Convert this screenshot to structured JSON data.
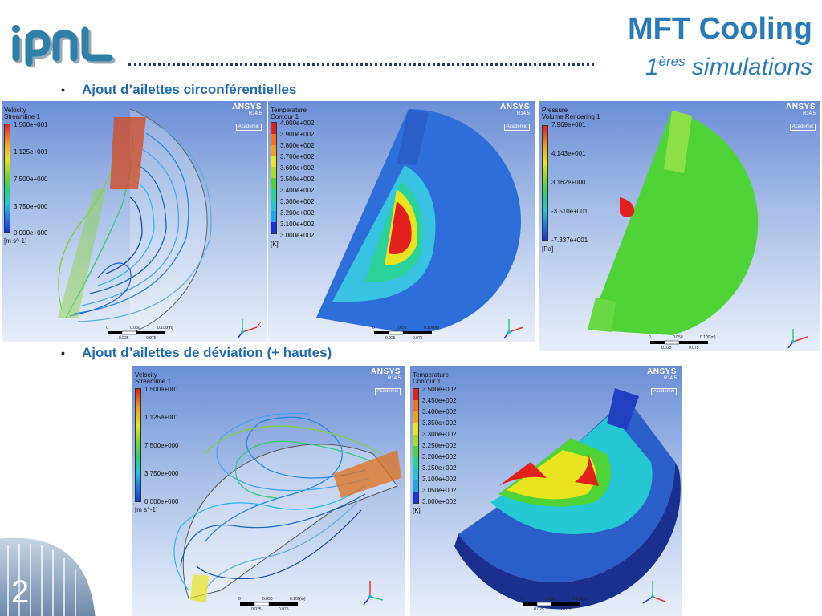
{
  "header": {
    "title": "MFT Cooling",
    "subtitle_number": "1",
    "subtitle_sup": "ères",
    "subtitle_rest": " simulations"
  },
  "bullets": {
    "b1": "Ajout d’ailettes circonférentielles",
    "b2": "Ajout d’ailettes de déviation (+ hautes)"
  },
  "ansys": {
    "name": "ANSYS",
    "version": "R14.5",
    "edition": "Academic"
  },
  "axes_glyph": {
    "x": "X",
    "y": "Y",
    "z": "Z"
  },
  "scale": {
    "t0": "0",
    "t1": "0.050",
    "t2": "0.100",
    "unit": "(m)",
    "t3": "0.025",
    "t4": "0.075"
  },
  "panels": {
    "p1": {
      "legend_title": "Velocity",
      "legend_sub": "Streamline 1",
      "ticks": [
        "1.500e+001",
        "1.125e+001",
        "7.500e+000",
        "3.750e+000",
        "0.000e+000"
      ],
      "unit": "[m s^-1]"
    },
    "p2": {
      "legend_title": "Temperature",
      "legend_sub": "Contour 1",
      "ticks": [
        "4.000e+002",
        "3.900e+002",
        "3.800e+002",
        "3.700e+002",
        "3.600e+002",
        "3.500e+002",
        "3.400e+002",
        "3.300e+002",
        "3.200e+002",
        "3.100e+002",
        "3.000e+002"
      ],
      "unit": "[K]"
    },
    "p3": {
      "legend_title": "Pressure",
      "legend_sub": "Volume Rendering 1",
      "ticks": [
        "7.969e+001",
        "4.143e+001",
        "3.162e+000",
        "-3.510e+001",
        "-7.337e+001"
      ],
      "unit": "[Pa]"
    },
    "p4": {
      "legend_title": "Velocity",
      "legend_sub": "Streamline 1",
      "ticks": [
        "1.500e+001",
        "1.125e+001",
        "7.500e+000",
        "3.750e+000",
        "0.000e+000"
      ],
      "unit": "[m s^-1]"
    },
    "p5": {
      "legend_title": "Temperature",
      "legend_sub": "Contour 1",
      "ticks": [
        "3.500e+002",
        "3.450e+002",
        "3.400e+002",
        "3.350e+002",
        "3.300e+002",
        "3.250e+002",
        "3.200e+002",
        "3.150e+002",
        "3.100e+002",
        "3.050e+002",
        "3.000e+002"
      ],
      "unit": "[K]"
    }
  },
  "footer": {
    "page_number": "2"
  },
  "colors": {
    "title_blue": "#2a7ab8",
    "bullet_blue": "#1f6ab0",
    "logo_teal": "#2f7fa6",
    "contour_steps": [
      "#e2201c",
      "#f4701d",
      "#f2a11d",
      "#e9e41f",
      "#a9dc23",
      "#4fd336",
      "#2bd39a",
      "#24c7d3",
      "#1fa7e6",
      "#1e74e0",
      "#1d33d8"
    ]
  }
}
